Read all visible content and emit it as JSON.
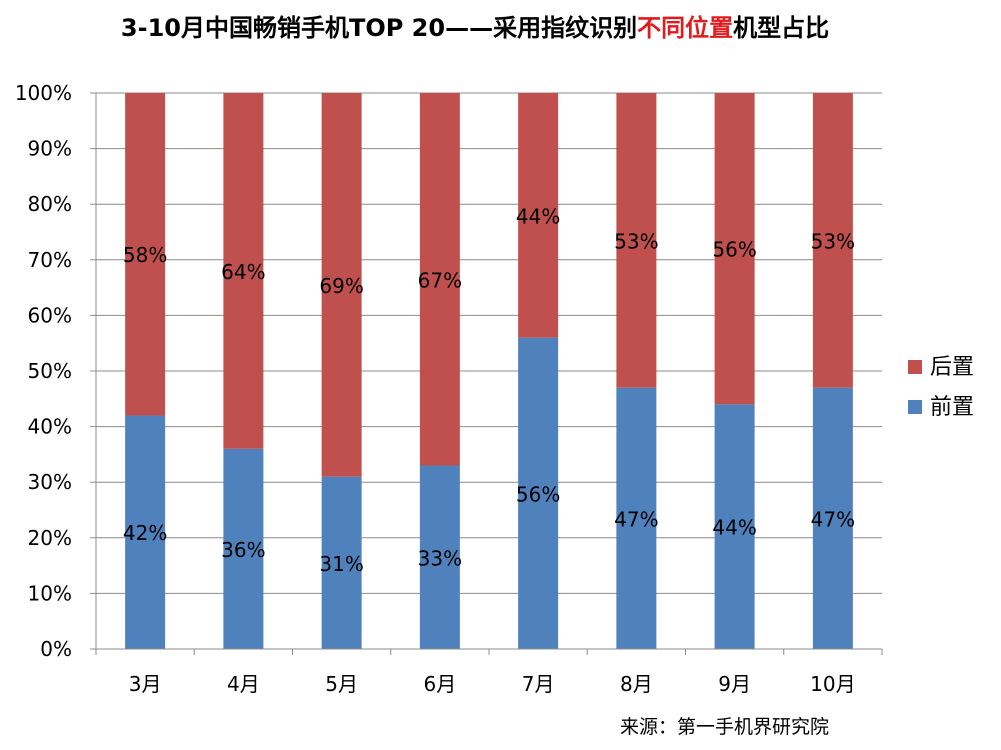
{
  "chart_data": {
    "type": "bar",
    "stacked": true,
    "percent": true,
    "title_parts": [
      {
        "text": "3-10月中国畅销手机TOP 20——采用指纹识别",
        "color": "#000000"
      },
      {
        "text": "不同位置",
        "color": "#e31a1c"
      },
      {
        "text": "机型占比",
        "color": "#000000"
      }
    ],
    "categories": [
      "3月",
      "4月",
      "5月",
      "6月",
      "7月",
      "8月",
      "9月",
      "10月"
    ],
    "series": [
      {
        "name": "前置",
        "color": "#4f81bd",
        "values": [
          42,
          36,
          31,
          33,
          56,
          47,
          44,
          47
        ]
      },
      {
        "name": "后置",
        "color": "#c0504d",
        "values": [
          58,
          64,
          69,
          67,
          44,
          53,
          56,
          53
        ]
      }
    ],
    "data_labels": {
      "前置": [
        "42%",
        "36%",
        "31%",
        "33%",
        "56%",
        "47%",
        "44%",
        "47%"
      ],
      "后置": [
        "58%",
        "64%",
        "69%",
        "67%",
        "44%",
        "53%",
        "56%",
        "53%"
      ]
    },
    "y_ticks": [
      "0%",
      "10%",
      "20%",
      "30%",
      "40%",
      "50%",
      "60%",
      "70%",
      "80%",
      "90%",
      "100%"
    ],
    "ylim": [
      0,
      100
    ],
    "grid": true,
    "legend_position": "right",
    "legend": [
      "后置",
      "前置"
    ]
  },
  "source_note": "来源：第一手机界研究院"
}
